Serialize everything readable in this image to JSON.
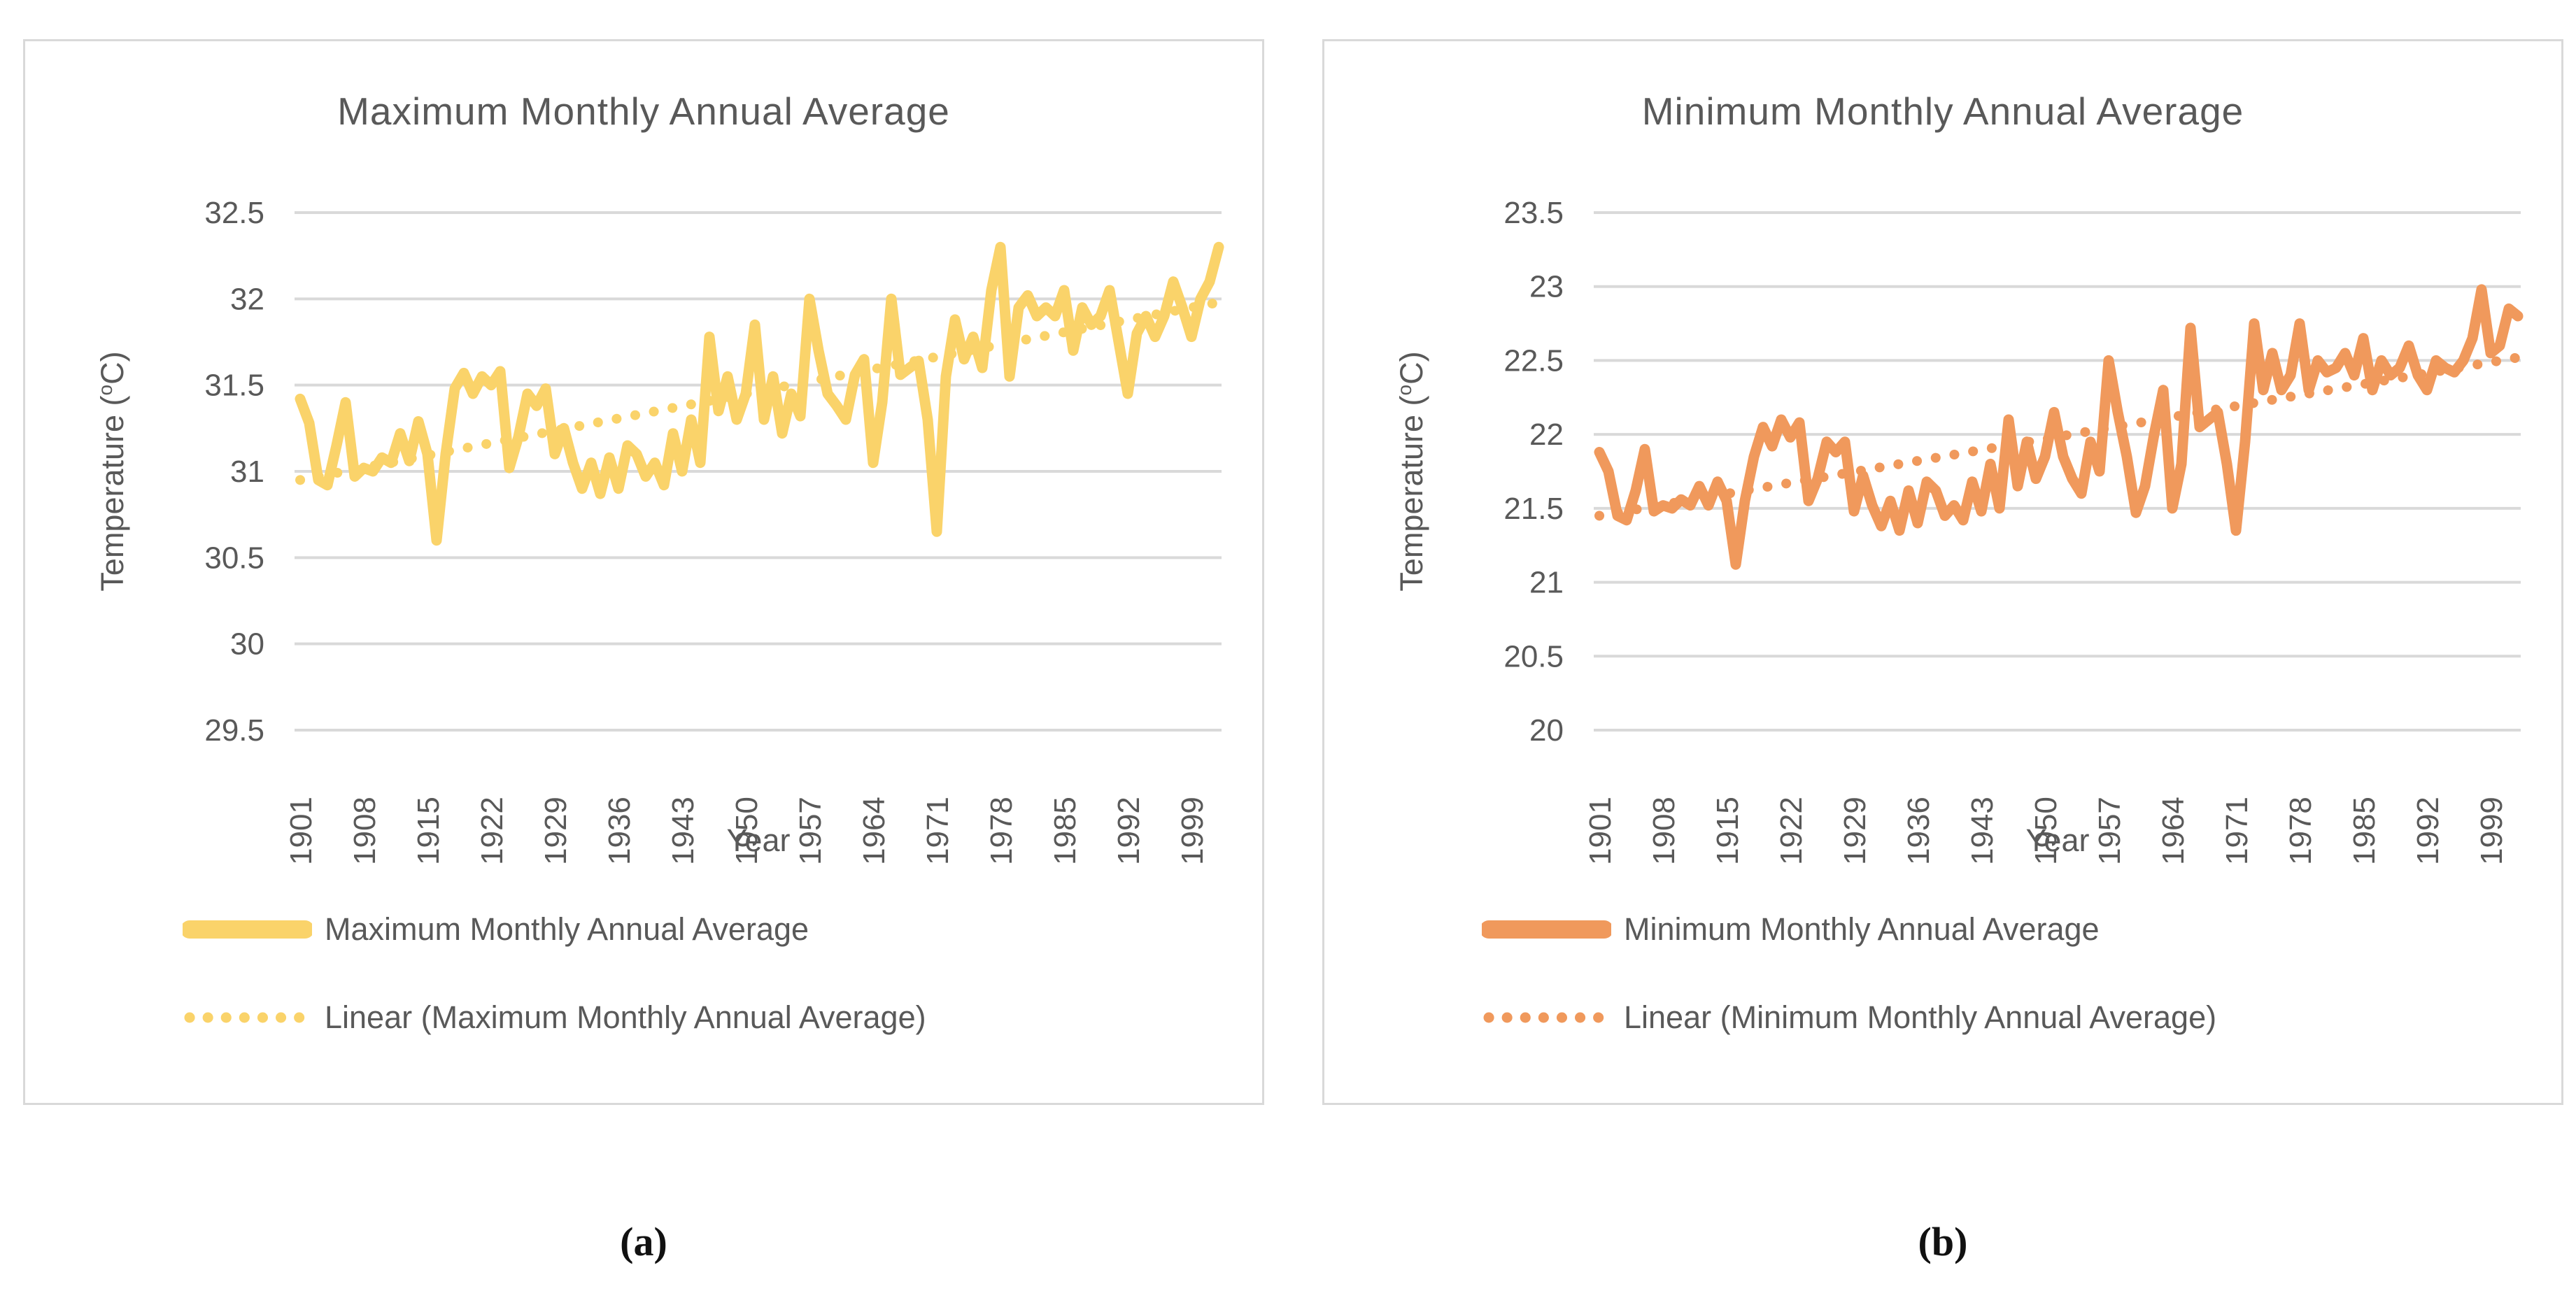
{
  "colors": {
    "series_max": "#FAD36A",
    "series_min": "#F0995C",
    "gridline": "#D9D9D9",
    "text": "#595959",
    "panel_border": "#D9D9D9",
    "background": "#FFFFFF"
  },
  "captions": [
    {
      "label": "(a)"
    },
    {
      "label": "(b)"
    }
  ],
  "chart_data": [
    {
      "type": "line",
      "title": "Maximum Monthly Annual Average",
      "xlabel": "Year",
      "ylabel": "Temperature (oC)",
      "ylabel_prefix": "Temperature (",
      "ylabel_sup": "o",
      "ylabel_suffix": "C)",
      "x_start": 1901,
      "x_step": 1,
      "x_end": 2002,
      "x_tick_years": [
        1901,
        1908,
        1915,
        1922,
        1929,
        1936,
        1943,
        1950,
        1957,
        1964,
        1971,
        1978,
        1985,
        1992,
        1999
      ],
      "ylim": [
        29.5,
        32.5
      ],
      "y_ticks": [
        32.5,
        32,
        31.5,
        31,
        30.5,
        30,
        29.5
      ],
      "grid": true,
      "legend_position": "bottom-left",
      "series": [
        {
          "name": "Maximum Monthly Annual Average",
          "style": "solid",
          "color": "#FAD36A",
          "values": [
            31.42,
            31.28,
            30.95,
            30.92,
            31.15,
            31.4,
            30.97,
            31.02,
            31.0,
            31.08,
            31.05,
            31.22,
            31.06,
            31.29,
            31.1,
            30.6,
            31.1,
            31.48,
            31.57,
            31.45,
            31.55,
            31.5,
            31.58,
            31.02,
            31.2,
            31.45,
            31.38,
            31.48,
            31.1,
            31.25,
            31.05,
            30.9,
            31.05,
            30.87,
            31.08,
            30.9,
            31.15,
            31.1,
            30.97,
            31.05,
            30.92,
            31.22,
            31.0,
            31.3,
            31.05,
            31.78,
            31.35,
            31.55,
            31.3,
            31.45,
            31.85,
            31.3,
            31.55,
            31.22,
            31.45,
            31.32,
            32.0,
            31.7,
            31.45,
            31.38,
            31.3,
            31.56,
            31.65,
            31.05,
            31.4,
            32.0,
            31.56,
            31.6,
            31.64,
            31.3,
            30.65,
            31.55,
            31.88,
            31.65,
            31.78,
            31.6,
            32.05,
            32.3,
            31.55,
            31.95,
            32.02,
            31.9,
            31.95,
            31.9,
            32.05,
            31.7,
            31.95,
            31.85,
            31.9,
            32.05,
            31.75,
            31.45,
            31.8,
            31.9,
            31.78,
            31.9,
            32.1,
            31.95,
            31.78,
            32.0,
            32.1,
            32.3
          ]
        },
        {
          "name": "Linear (Maximum Monthly Annual Average)",
          "style": "dotted",
          "color": "#FAD36A",
          "trend": [
            [
              1901,
              30.95
            ],
            [
              2002,
              31.98
            ]
          ]
        }
      ]
    },
    {
      "type": "line",
      "title": "Minimum Monthly Annual Average",
      "xlabel": "Year",
      "ylabel": "Temperature (oC)",
      "ylabel_prefix": "Temperature (",
      "ylabel_sup": "o",
      "ylabel_suffix": "C)",
      "x_start": 1901,
      "x_step": 1,
      "x_end": 2002,
      "x_tick_years": [
        1901,
        1908,
        1915,
        1922,
        1929,
        1936,
        1943,
        1950,
        1957,
        1964,
        1971,
        1978,
        1985,
        1992,
        1999
      ],
      "ylim": [
        20,
        23.5
      ],
      "y_ticks": [
        23.5,
        23,
        22.5,
        22,
        21.5,
        21,
        20.5,
        20
      ],
      "grid": true,
      "legend_position": "bottom-left",
      "series": [
        {
          "name": "Minimum Monthly Annual Average",
          "style": "solid",
          "color": "#F0995C",
          "values": [
            21.88,
            21.75,
            21.45,
            21.42,
            21.62,
            21.9,
            21.48,
            21.52,
            21.5,
            21.56,
            21.52,
            21.65,
            21.52,
            21.68,
            21.55,
            21.12,
            21.55,
            21.85,
            22.05,
            21.92,
            22.1,
            21.98,
            22.08,
            21.55,
            21.7,
            21.95,
            21.88,
            21.95,
            21.48,
            21.72,
            21.52,
            21.38,
            21.55,
            21.35,
            21.62,
            21.4,
            21.68,
            21.62,
            21.45,
            21.52,
            21.42,
            21.68,
            21.48,
            21.8,
            21.5,
            22.1,
            21.65,
            21.95,
            21.7,
            21.85,
            22.15,
            21.85,
            21.7,
            21.6,
            21.95,
            21.75,
            22.5,
            22.15,
            21.85,
            21.47,
            21.65,
            22.0,
            22.3,
            21.5,
            21.8,
            22.72,
            22.05,
            22.1,
            22.15,
            21.8,
            21.35,
            21.95,
            22.75,
            22.3,
            22.55,
            22.3,
            22.4,
            22.75,
            22.3,
            22.5,
            22.42,
            22.45,
            22.55,
            22.4,
            22.65,
            22.3,
            22.5,
            22.4,
            22.45,
            22.6,
            22.4,
            22.3,
            22.5,
            22.45,
            22.42,
            22.5,
            22.65,
            22.98,
            22.55,
            22.6,
            22.85,
            22.8
          ]
        },
        {
          "name": "Linear (Minimum Monthly Annual Average)",
          "style": "dotted",
          "color": "#F0995C",
          "trend": [
            [
              1901,
              21.45
            ],
            [
              2002,
              22.52
            ]
          ]
        }
      ]
    }
  ]
}
